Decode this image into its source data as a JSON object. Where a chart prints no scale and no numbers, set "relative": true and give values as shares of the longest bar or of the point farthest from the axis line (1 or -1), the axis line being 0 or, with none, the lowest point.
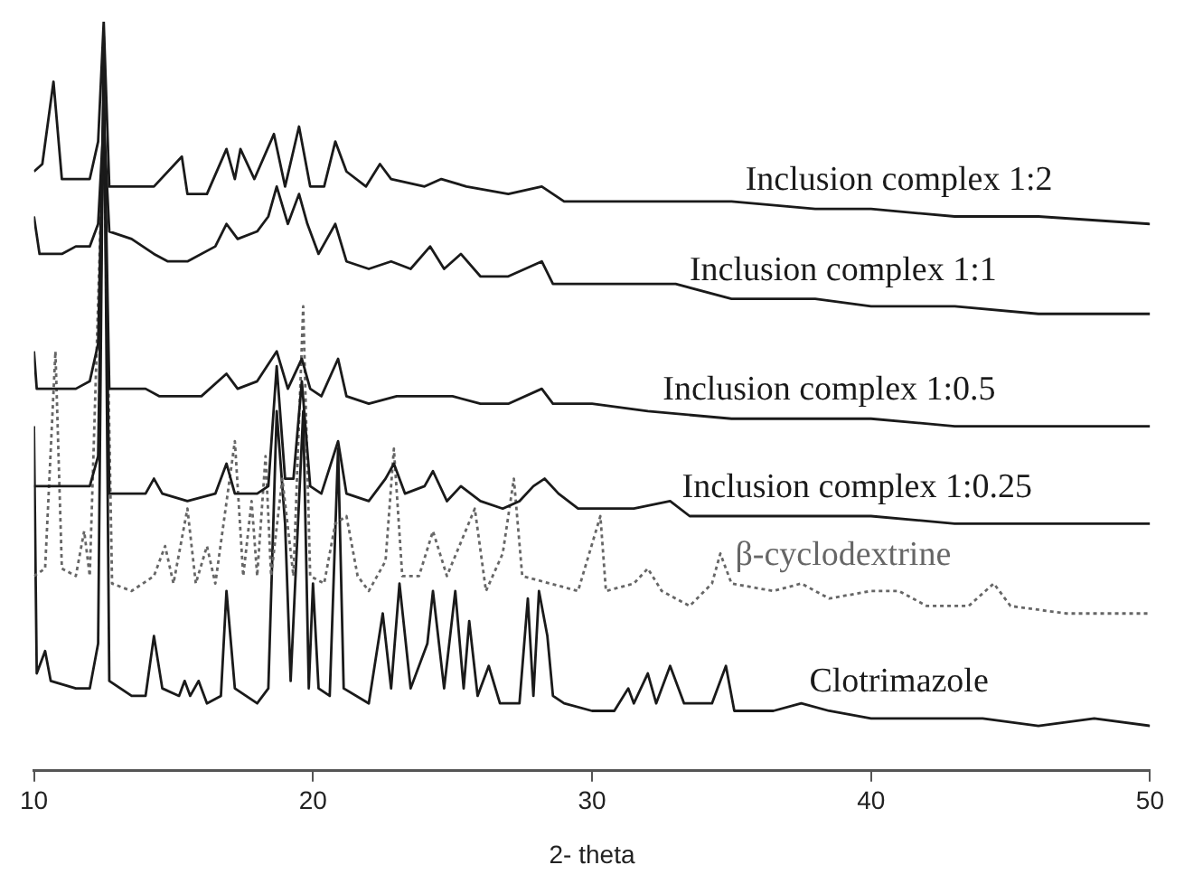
{
  "chart_data": {
    "type": "line",
    "relative": true,
    "xlabel": "2- theta",
    "xlim": [
      10,
      50
    ],
    "xticks": [
      10,
      20,
      30,
      40,
      50
    ],
    "grid": false,
    "series": [
      {
        "name": "Inclusion complex 1:2",
        "color": "#1a1a1a",
        "line_style": "solid",
        "x": [
          10,
          10.3,
          10.7,
          11,
          11.5,
          12,
          12.3,
          12.5,
          12.7,
          13.5,
          14.3,
          15.3,
          15.5,
          16.2,
          16.9,
          17.2,
          17.4,
          17.9,
          18.6,
          19,
          19.5,
          19.9,
          20.4,
          20.8,
          21.2,
          21.9,
          22.4,
          22.8,
          24,
          24.6,
          25.5,
          27,
          28.2,
          29,
          31,
          33,
          35,
          38,
          40,
          43,
          46,
          50
        ],
        "values": [
          0.8,
          0.81,
          0.92,
          0.79,
          0.79,
          0.79,
          0.84,
          1,
          0.78,
          0.78,
          0.78,
          0.82,
          0.77,
          0.77,
          0.83,
          0.79,
          0.83,
          0.79,
          0.85,
          0.78,
          0.86,
          0.78,
          0.78,
          0.84,
          0.8,
          0.78,
          0.81,
          0.79,
          0.78,
          0.79,
          0.78,
          0.77,
          0.78,
          0.76,
          0.76,
          0.76,
          0.76,
          0.75,
          0.75,
          0.74,
          0.74,
          0.73
        ]
      },
      {
        "name": "Inclusion complex 1:1",
        "color": "#1a1a1a",
        "line_style": "solid",
        "x": [
          10,
          10.2,
          11,
          11.5,
          12,
          12.3,
          12.5,
          12.7,
          13.5,
          14.3,
          14.8,
          15.5,
          16.5,
          16.9,
          17.3,
          18,
          18.4,
          18.7,
          19.1,
          19.5,
          19.8,
          20.2,
          20.8,
          21.2,
          22,
          22.8,
          23.5,
          24.2,
          24.7,
          25.3,
          26,
          27,
          28.2,
          28.6,
          29.5,
          31,
          33,
          35,
          38,
          40,
          43,
          46,
          50
        ],
        "values": [
          0.74,
          0.69,
          0.69,
          0.7,
          0.7,
          0.73,
          0.87,
          0.72,
          0.71,
          0.69,
          0.68,
          0.68,
          0.7,
          0.73,
          0.71,
          0.72,
          0.74,
          0.78,
          0.73,
          0.77,
          0.73,
          0.69,
          0.73,
          0.68,
          0.67,
          0.68,
          0.67,
          0.7,
          0.67,
          0.69,
          0.66,
          0.66,
          0.68,
          0.65,
          0.65,
          0.65,
          0.65,
          0.63,
          0.63,
          0.62,
          0.62,
          0.61,
          0.61
        ]
      },
      {
        "name": "Inclusion complex 1:0.5",
        "color": "#1a1a1a",
        "line_style": "solid",
        "x": [
          10,
          10.1,
          11,
          11.5,
          12,
          12.3,
          12.5,
          12.7,
          13.5,
          14,
          14.5,
          15,
          16,
          16.9,
          17.3,
          18,
          18.7,
          19.1,
          19.6,
          19.9,
          20.3,
          20.9,
          21.2,
          22,
          23,
          24,
          25,
          26,
          27,
          28.2,
          28.6,
          30,
          32,
          35,
          38,
          40,
          43,
          46,
          50
        ],
        "values": [
          0.56,
          0.51,
          0.51,
          0.51,
          0.52,
          0.57,
          0.91,
          0.51,
          0.51,
          0.51,
          0.5,
          0.5,
          0.5,
          0.53,
          0.51,
          0.52,
          0.56,
          0.51,
          0.55,
          0.51,
          0.5,
          0.55,
          0.5,
          0.49,
          0.5,
          0.5,
          0.5,
          0.49,
          0.49,
          0.51,
          0.49,
          0.49,
          0.48,
          0.47,
          0.47,
          0.47,
          0.46,
          0.46,
          0.46
        ]
      },
      {
        "name": "Inclusion complex 1:0.25",
        "color": "#1a1a1a",
        "line_style": "solid",
        "x": [
          10,
          11,
          12,
          12.3,
          12.5,
          12.7,
          13.5,
          14,
          14.3,
          14.6,
          15.5,
          16.5,
          16.9,
          17.2,
          18,
          18.4,
          18.7,
          19,
          19.3,
          19.6,
          19.9,
          20.3,
          20.9,
          21.2,
          22,
          22.6,
          22.9,
          23.3,
          24,
          24.3,
          24.8,
          25.3,
          26,
          26.8,
          27.4,
          27.9,
          28.3,
          28.8,
          29.5,
          30.5,
          31.5,
          32.8,
          33.5,
          35,
          37,
          40,
          43,
          46,
          50
        ],
        "values": [
          0.38,
          0.38,
          0.38,
          0.42,
          0.9,
          0.37,
          0.37,
          0.37,
          0.39,
          0.37,
          0.36,
          0.37,
          0.41,
          0.37,
          0.37,
          0.38,
          0.54,
          0.39,
          0.39,
          0.52,
          0.38,
          0.37,
          0.44,
          0.37,
          0.36,
          0.39,
          0.41,
          0.37,
          0.38,
          0.4,
          0.36,
          0.38,
          0.36,
          0.35,
          0.36,
          0.38,
          0.39,
          0.37,
          0.35,
          0.35,
          0.35,
          0.36,
          0.34,
          0.34,
          0.34,
          0.34,
          0.33,
          0.33,
          0.33
        ]
      },
      {
        "name": "β-cyclodextrine",
        "color": "#666666",
        "line_style": "dotted",
        "x": [
          10,
          10.4,
          10.77,
          11,
          11.5,
          11.8,
          12,
          12.5,
          12.8,
          13.5,
          14.3,
          14.7,
          15,
          15.5,
          15.8,
          16.2,
          16.5,
          17.2,
          17.5,
          17.8,
          18,
          18.3,
          18.5,
          18.9,
          19.3,
          19.65,
          19.9,
          20.4,
          20.8,
          21.2,
          21.6,
          22,
          22.6,
          22.9,
          23.2,
          23.8,
          24.3,
          24.8,
          25.8,
          26.2,
          26.8,
          27.2,
          27.5,
          28.5,
          29.5,
          30.3,
          30.5,
          31.5,
          32,
          32.5,
          33.5,
          34.3,
          34.6,
          35,
          36.5,
          37.5,
          38.5,
          40,
          41,
          42,
          43.5,
          44.4,
          45,
          47,
          50
        ],
        "values": [
          0.26,
          0.27,
          0.56,
          0.27,
          0.26,
          0.32,
          0.26,
          0.87,
          0.25,
          0.24,
          0.26,
          0.3,
          0.25,
          0.35,
          0.25,
          0.3,
          0.25,
          0.44,
          0.26,
          0.36,
          0.26,
          0.42,
          0.26,
          0.39,
          0.26,
          0.62,
          0.26,
          0.25,
          0.33,
          0.34,
          0.26,
          0.24,
          0.28,
          0.43,
          0.26,
          0.26,
          0.32,
          0.26,
          0.35,
          0.24,
          0.29,
          0.39,
          0.26,
          0.25,
          0.24,
          0.34,
          0.24,
          0.25,
          0.27,
          0.24,
          0.22,
          0.25,
          0.29,
          0.25,
          0.24,
          0.25,
          0.23,
          0.24,
          0.24,
          0.22,
          0.22,
          0.25,
          0.22,
          0.21,
          0.21
        ]
      },
      {
        "name": "Clotrimazole",
        "color": "#1a1a1a",
        "line_style": "solid",
        "x": [
          10,
          10.1,
          10.4,
          10.6,
          11.5,
          12,
          12.3,
          12.5,
          12.7,
          13.5,
          14,
          14.3,
          14.6,
          15.2,
          15.4,
          15.6,
          15.9,
          16.2,
          16.7,
          16.9,
          17.2,
          18,
          18.4,
          18.7,
          19,
          19.2,
          19.65,
          19.85,
          20,
          20.2,
          20.6,
          20.9,
          21.1,
          22,
          22.5,
          22.8,
          23.1,
          23.5,
          24.1,
          24.3,
          24.7,
          25.1,
          25.4,
          25.6,
          25.9,
          26.3,
          26.7,
          27.4,
          27.7,
          27.9,
          28.1,
          28.4,
          28.6,
          29,
          30,
          30.8,
          31.3,
          31.5,
          32,
          32.3,
          32.8,
          33.3,
          34.3,
          34.8,
          35.1,
          36.5,
          37.5,
          38.5,
          40,
          42,
          44,
          46,
          48,
          50
        ],
        "values": [
          0.46,
          0.13,
          0.16,
          0.12,
          0.11,
          0.11,
          0.17,
          0.98,
          0.12,
          0.1,
          0.1,
          0.18,
          0.11,
          0.1,
          0.12,
          0.1,
          0.12,
          0.09,
          0.1,
          0.24,
          0.11,
          0.09,
          0.11,
          0.48,
          0.33,
          0.12,
          0.48,
          0.11,
          0.25,
          0.11,
          0.1,
          0.43,
          0.11,
          0.09,
          0.21,
          0.11,
          0.25,
          0.11,
          0.17,
          0.24,
          0.11,
          0.24,
          0.11,
          0.2,
          0.1,
          0.14,
          0.09,
          0.09,
          0.23,
          0.1,
          0.24,
          0.18,
          0.1,
          0.09,
          0.08,
          0.08,
          0.11,
          0.09,
          0.13,
          0.09,
          0.14,
          0.09,
          0.09,
          0.14,
          0.08,
          0.08,
          0.09,
          0.08,
          0.07,
          0.07,
          0.07,
          0.06,
          0.07,
          0.06
        ]
      }
    ]
  }
}
